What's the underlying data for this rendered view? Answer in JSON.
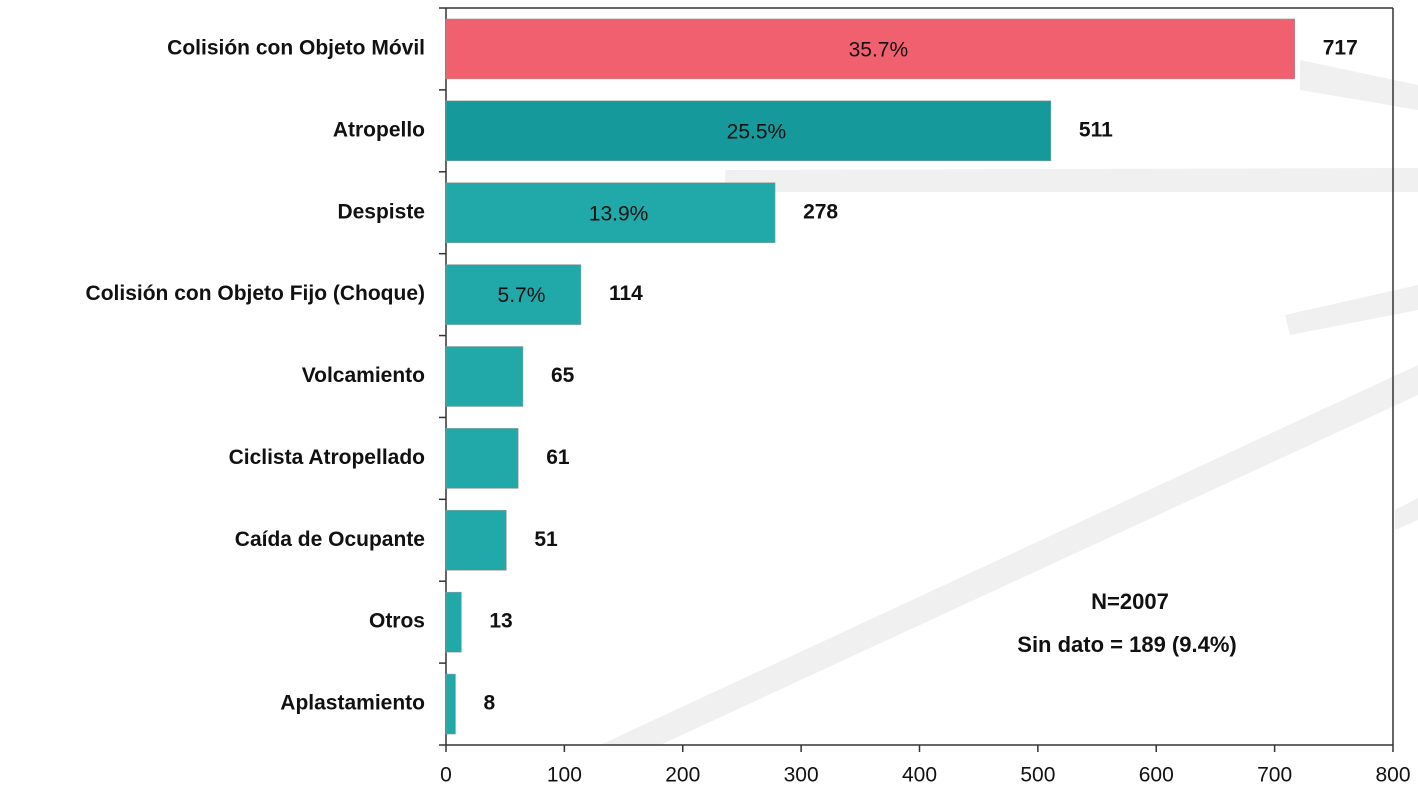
{
  "chart_data": {
    "type": "bar",
    "orientation": "horizontal",
    "categories": [
      "Colisión con Objeto Móvil",
      "Atropello",
      "Despiste",
      "Colisión con Objeto Fijo (Choque)",
      "Volcamiento",
      "Ciclista Atropellado",
      "Caída de Ocupante",
      "Otros",
      "Aplastamiento"
    ],
    "values": [
      717,
      511,
      278,
      114,
      65,
      61,
      51,
      13,
      8
    ],
    "colors": [
      "#f0606e",
      "#16999a",
      "#21a8a8",
      "#21a8a8",
      "#21a8a8",
      "#21a8a8",
      "#21a8a8",
      "#21a8a8",
      "#21a8a8"
    ],
    "shares": [
      35.7,
      25.5,
      13.9,
      5.7,
      null,
      null,
      null,
      null,
      null
    ],
    "share_labels": [
      "35.7%",
      "25.5%",
      "13.9%",
      "5.7%",
      null,
      null,
      null,
      null,
      null
    ],
    "xlim": [
      0,
      800
    ],
    "xticks": [
      0,
      100,
      200,
      300,
      400,
      500,
      600,
      700,
      800
    ],
    "annotations": [
      "N=2007",
      "Sin dato = 189 (9.4%)"
    ]
  }
}
